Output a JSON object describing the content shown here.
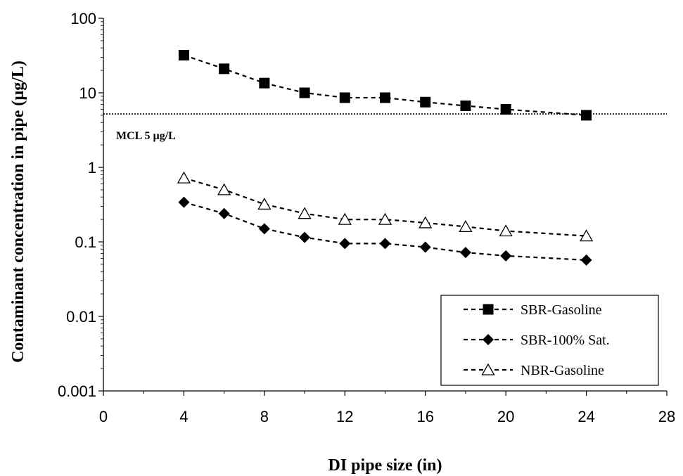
{
  "chart_data": {
    "type": "line",
    "xlabel": "DI pipe size (in)",
    "ylabel": "Contaminant concentration in pipe (µg/L)",
    "xlim": [
      0,
      28
    ],
    "ylim": [
      0.001,
      100
    ],
    "yscale": "log",
    "x_ticks": [
      "0",
      "4",
      "8",
      "12",
      "16",
      "20",
      "24",
      "28"
    ],
    "x_tick_values": [
      0,
      4,
      8,
      12,
      16,
      20,
      24,
      28
    ],
    "y_ticks": [
      "0.001",
      "0.01",
      "0.1",
      "1",
      "10",
      "100"
    ],
    "y_tick_values": [
      0.001,
      0.01,
      0.1,
      1,
      10,
      100
    ],
    "grid": false,
    "legend_position": "bottom-right",
    "reference_line": {
      "value": 5.2,
      "style": "dotted",
      "label": "MCL 5 µg/L"
    },
    "series": [
      {
        "name": "SBR-Gasoline",
        "marker": "square-filled",
        "line": "dashed",
        "x": [
          4,
          6,
          8,
          10,
          12,
          14,
          16,
          18,
          20,
          24
        ],
        "values": [
          32,
          21,
          13.5,
          10,
          8.6,
          8.6,
          7.5,
          6.7,
          6.0,
          5.0
        ]
      },
      {
        "name": "SBR-100% Sat.",
        "marker": "diamond-filled",
        "line": "dashed",
        "x": [
          4,
          6,
          8,
          10,
          12,
          14,
          16,
          18,
          20,
          24
        ],
        "values": [
          0.34,
          0.24,
          0.15,
          0.115,
          0.095,
          0.095,
          0.085,
          0.072,
          0.065,
          0.057
        ]
      },
      {
        "name": "NBR-Gasoline",
        "marker": "triangle-open",
        "line": "dashed",
        "x": [
          4,
          6,
          8,
          10,
          12,
          14,
          16,
          18,
          20,
          24
        ],
        "values": [
          0.72,
          0.5,
          0.32,
          0.24,
          0.2,
          0.2,
          0.18,
          0.16,
          0.14,
          0.12
        ]
      }
    ]
  }
}
